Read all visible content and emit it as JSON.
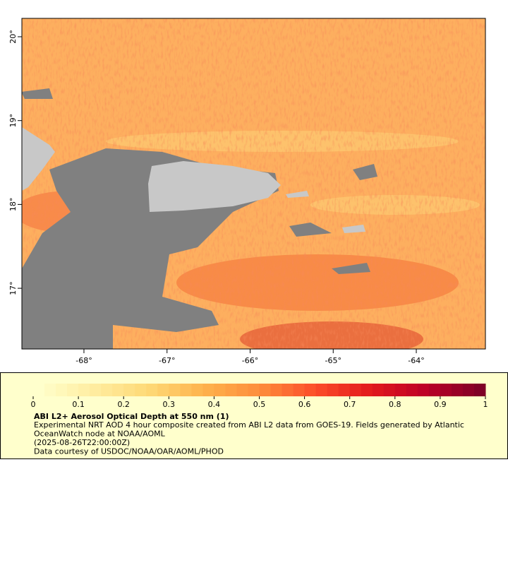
{
  "map": {
    "xlim": [
      -68.747,
      -63.168
    ],
    "ylim": [
      16.276,
      20.219
    ],
    "xticks": [
      {
        "value": -68,
        "label": "-68°"
      },
      {
        "value": -67,
        "label": "-67°"
      },
      {
        "value": -66,
        "label": "-66°"
      },
      {
        "value": -65,
        "label": "-65°"
      },
      {
        "value": -64,
        "label": "-64°"
      }
    ],
    "yticks": [
      {
        "value": 17,
        "label": "17°"
      },
      {
        "value": 18,
        "label": "18°"
      },
      {
        "value": 19,
        "label": "19°"
      },
      {
        "value": 20,
        "label": "20°"
      }
    ]
  },
  "colorbar": {
    "title": "ABI L2+ Aerosol Optical Depth at 550 nm (1)",
    "lim": [
      0,
      1
    ],
    "ticks": [
      0,
      0.1,
      0.2,
      0.3,
      0.4,
      0.5,
      0.6,
      0.7,
      0.8,
      0.9,
      1
    ],
    "colors": [
      "#ffffcc",
      "#ffeda0",
      "#fed976",
      "#feb24c",
      "#fd8d3c",
      "#fc4e2a",
      "#e31a1c",
      "#bd0026",
      "#800026"
    ]
  },
  "caption": [
    "Experimental NRT AOD 4 hour composite created from ABI L2 data from GOES-19. Fields generated by Atlantic",
    "OceanWatch node at NOAA/AOML",
    "(2025-08-26T22:00:00Z)",
    "Data courtesy of USDOC/NOAA/OAR/AOML/PHOD"
  ]
}
